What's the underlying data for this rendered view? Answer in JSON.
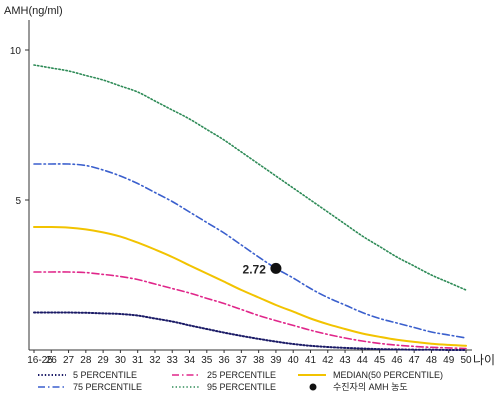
{
  "chart_data": {
    "type": "line",
    "ylabel": "AMH(ng/ml)",
    "xlabel": "나이",
    "ylim": [
      0,
      11
    ],
    "yticks": [
      10,
      5
    ],
    "categories": [
      "16-25",
      "26",
      "27",
      "28",
      "29",
      "30",
      "31",
      "32",
      "33",
      "34",
      "35",
      "36",
      "37",
      "38",
      "39",
      "40",
      "41",
      "42",
      "43",
      "44",
      "45",
      "46",
      "47",
      "48",
      "49",
      "50"
    ],
    "series": [
      {
        "name": "95 PERCENTILE",
        "color": "#2e8b57",
        "dash": "1.4 2.2",
        "width": 1.6,
        "values": [
          9.5,
          9.4,
          9.3,
          9.15,
          9.0,
          8.8,
          8.6,
          8.3,
          8.0,
          7.7,
          7.35,
          7.0,
          6.6,
          6.2,
          5.8,
          5.4,
          5.0,
          4.6,
          4.2,
          3.8,
          3.45,
          3.1,
          2.8,
          2.5,
          2.25,
          2.0
        ]
      },
      {
        "name": "75 PERCENTILE",
        "color": "#3a5fcd",
        "dash": "7 3 1.5 3",
        "width": 1.6,
        "values": [
          6.2,
          6.2,
          6.2,
          6.15,
          6.0,
          5.8,
          5.55,
          5.25,
          4.95,
          4.6,
          4.25,
          3.9,
          3.5,
          3.1,
          2.72,
          2.4,
          2.05,
          1.75,
          1.5,
          1.25,
          1.05,
          0.9,
          0.75,
          0.6,
          0.5,
          0.4
        ]
      },
      {
        "name": "MEDIAN(50 PERCENTILE)",
        "color": "#f2c300",
        "dash": "",
        "width": 2.0,
        "values": [
          4.1,
          4.1,
          4.08,
          4.02,
          3.92,
          3.78,
          3.58,
          3.35,
          3.1,
          2.82,
          2.55,
          2.28,
          2.0,
          1.75,
          1.5,
          1.28,
          1.05,
          0.86,
          0.7,
          0.55,
          0.44,
          0.34,
          0.27,
          0.21,
          0.17,
          0.14
        ]
      },
      {
        "name": "25 PERCENTILE",
        "color": "#e0268a",
        "dash": "7 3 1.5 3",
        "width": 1.6,
        "values": [
          2.6,
          2.6,
          2.6,
          2.58,
          2.52,
          2.45,
          2.35,
          2.2,
          2.05,
          1.9,
          1.72,
          1.55,
          1.35,
          1.15,
          0.98,
          0.82,
          0.66,
          0.52,
          0.4,
          0.3,
          0.22,
          0.16,
          0.12,
          0.09,
          0.07,
          0.05
        ]
      },
      {
        "name": "5 PERCENTILE",
        "color": "#1a1a66",
        "dash": "1.4 2",
        "width": 2.0,
        "values": [
          1.25,
          1.25,
          1.25,
          1.24,
          1.22,
          1.2,
          1.15,
          1.05,
          0.95,
          0.82,
          0.7,
          0.58,
          0.47,
          0.37,
          0.28,
          0.2,
          0.14,
          0.1,
          0.07,
          0.05,
          0.03,
          0.02,
          0.01,
          0.01,
          0.0,
          0.0
        ]
      }
    ],
    "highlight": {
      "name": "수진자의 AMH 농도",
      "x": "39",
      "value": 2.72,
      "label": "2.72",
      "color": "#111111"
    },
    "legend": {
      "placement": "bottom",
      "entries": [
        {
          "label": "5 PERCENTILE",
          "series": "5 PERCENTILE"
        },
        {
          "label": "25 PERCENTILE",
          "series": "25 PERCENTILE"
        },
        {
          "label": "MEDIAN(50 PERCENTILE)",
          "series": "MEDIAN(50 PERCENTILE)"
        },
        {
          "label": "75 PERCENTILE",
          "series": "75 PERCENTILE"
        },
        {
          "label": "95 PERCENTILE",
          "series": "95 PERCENTILE"
        },
        {
          "label": "수진자의 AMH 농도",
          "marker": "dot"
        }
      ]
    },
    "grid": false
  }
}
